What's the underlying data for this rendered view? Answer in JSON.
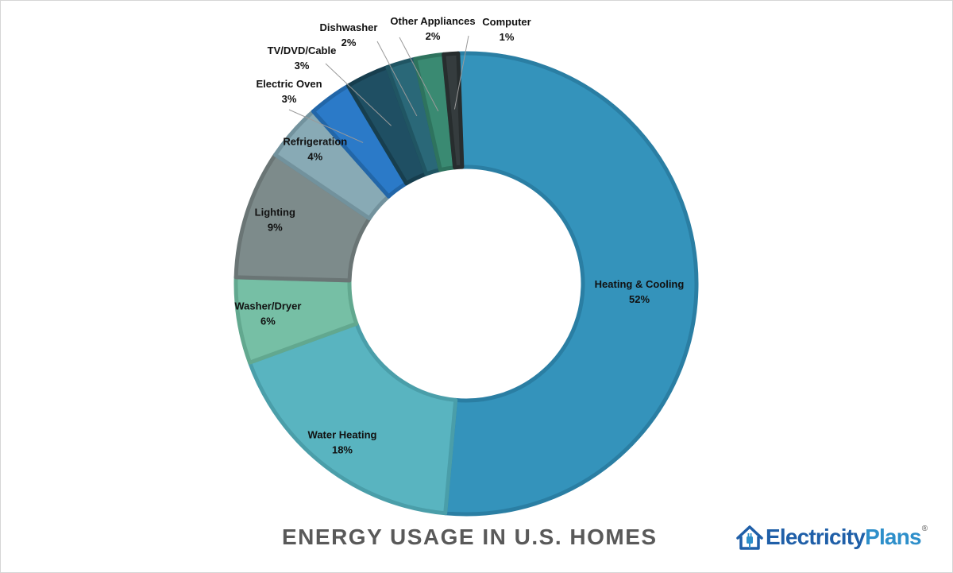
{
  "chart_data": {
    "type": "pie",
    "variant": "donut",
    "title": "ENERGY USAGE IN U.S. HOMES",
    "unit": "%",
    "slices": [
      {
        "label": "Heating & Cooling",
        "value": 52,
        "value_label": "52%",
        "color": "#3493bb",
        "stroke": "#2a7ea3",
        "label_style": "inside"
      },
      {
        "label": "Water Heating",
        "value": 18,
        "value_label": "18%",
        "color": "#59b4c0",
        "stroke": "#4a9ea9",
        "label_style": "inside"
      },
      {
        "label": "Washer/Dryer",
        "value": 6,
        "value_label": "6%",
        "color": "#76bfa5",
        "stroke": "#62a88f",
        "label_style": "inside"
      },
      {
        "label": "Lighting",
        "value": 9,
        "value_label": "9%",
        "color": "#7d8b8b",
        "stroke": "#6a7575",
        "label_style": "inside"
      },
      {
        "label": "Refrigeration",
        "value": 4,
        "value_label": "4%",
        "color": "#88aab5",
        "stroke": "#72929d",
        "label_style": "inside"
      },
      {
        "label": "Electric Oven",
        "value": 3,
        "value_label": "3%",
        "color": "#2b7ac8",
        "stroke": "#2266a8",
        "label_style": "outside"
      },
      {
        "label": "TV/DVD/Cable",
        "value": 3,
        "value_label": "3%",
        "color": "#1f4f63",
        "stroke": "#173e4e",
        "label_style": "outside"
      },
      {
        "label": "Dishwasher",
        "value": 2,
        "value_label": "2%",
        "color": "#2a6878",
        "stroke": "#205563",
        "label_style": "outside"
      },
      {
        "label": "Other Appliances",
        "value": 2,
        "value_label": "2%",
        "color": "#3a8a72",
        "stroke": "#2e735e",
        "label_style": "outside"
      },
      {
        "label": "Computer",
        "value": 1,
        "value_label": "1%",
        "color": "#353c3e",
        "stroke": "#272d2e",
        "label_style": "outside"
      }
    ]
  },
  "brand": {
    "name_part1": "Electricity",
    "name_part2": "Plans",
    "registered_mark": "®"
  }
}
